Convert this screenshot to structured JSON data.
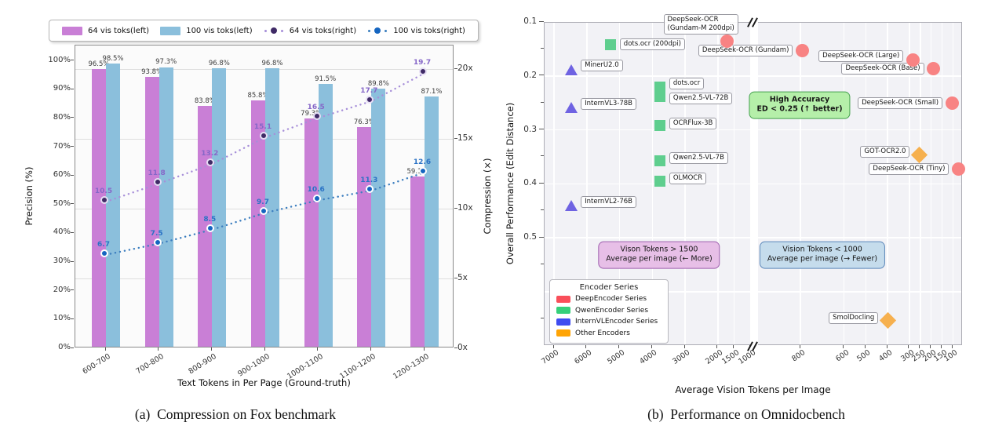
{
  "captions": {
    "a": "(a)  Compression on Fox benchmark",
    "b": "(b)  Performance on Omnidocbench"
  },
  "chart_data": [
    {
      "id": "fox-compression",
      "type": "bar",
      "title": "",
      "xlabel": "Text Tokens in Per Page (Ground-truth)",
      "ylabel_left": "Precision (%)",
      "ylabel_right": "Compression (×)",
      "categories": [
        "600-700",
        "700-800",
        "800-900",
        "900-1000",
        "1000-1100",
        "1100-1200",
        "1200-1300"
      ],
      "yticks_left": [
        "0%",
        "10%",
        "20%",
        "30%",
        "40%",
        "50%",
        "60%",
        "70%",
        "80%",
        "90%",
        "100%"
      ],
      "yticks_right": [
        "0x",
        "5x",
        "10x",
        "15x",
        "20x"
      ],
      "ylim_left": [
        0,
        100
      ],
      "ylim_right": [
        0,
        21.7
      ],
      "grid": "horizontal at right-axis ticks",
      "legend_position": "top",
      "series": [
        {
          "name": "64 vis toks(left)",
          "kind": "bar",
          "axis": "left",
          "color": "#c97fd6",
          "values": [
            96.5,
            93.8,
            83.8,
            85.8,
            79.3,
            76.3,
            59.1
          ],
          "labels": [
            "96.5%",
            "93.8%",
            "83.8%",
            "85.8%",
            "79.3%",
            "76.3%",
            "59.1%"
          ],
          "label_color": "#3d3d3d"
        },
        {
          "name": "100 vis toks(left)",
          "kind": "bar",
          "axis": "left",
          "color": "#8bbfdc",
          "values": [
            98.5,
            97.3,
            96.8,
            96.8,
            91.5,
            89.8,
            87.1
          ],
          "labels": [
            "98.5%",
            "97.3%",
            "96.8%",
            "96.8%",
            "91.5%",
            "89.8%",
            "87.1%"
          ],
          "label_color": "#3d3d3d"
        },
        {
          "name": "64 vis toks(right)",
          "kind": "line",
          "axis": "right",
          "line_color": "#a78fd9",
          "dot_color": "#3f2a66",
          "dot_ring": "#e6def4",
          "values": [
            10.5,
            11.8,
            13.2,
            15.1,
            16.5,
            17.7,
            19.7
          ],
          "labels": [
            "10.5",
            "11.8",
            "13.2",
            "15.1",
            "16.5",
            "17.7",
            "19.7"
          ],
          "label_color": "#8667c8"
        },
        {
          "name": "100 vis toks(right)",
          "kind": "line",
          "axis": "right",
          "line_color": "#3c7ebf",
          "dot_color": "#1565c0",
          "dot_ring": "#ffffff",
          "values": [
            6.7,
            7.5,
            8.5,
            9.7,
            10.6,
            11.3,
            12.6
          ],
          "labels": [
            "6.7",
            "7.5",
            "8.5",
            "9.7",
            "10.6",
            "11.3",
            "12.6"
          ],
          "label_color": "#2a72c5"
        }
      ]
    },
    {
      "id": "omnidocbench-performance",
      "type": "scatter",
      "title": "",
      "xlabel": "Average Vision Tokens per Image",
      "ylabel": "Overall Performance (Edit Distance)",
      "x_axis": {
        "broken": true,
        "left_segment": {
          "ticks": [
            7000,
            6000,
            5000,
            4000,
            3000,
            2000,
            1500,
            1000
          ],
          "range": [
            7290,
            1000
          ],
          "scale": "linear"
        },
        "right_segment": {
          "ticks": [
            800,
            600,
            500,
            400,
            300,
            250,
            200,
            150,
            100
          ],
          "range": [
            1000,
            55
          ],
          "scale": "linear"
        }
      },
      "y_axis": {
        "ticks": [
          "0.1",
          "0.2",
          "0.3",
          "0.4",
          "0.5"
        ],
        "range": [
          0.1,
          0.7
        ],
        "minor_ticks": [
          0.15,
          0.25,
          0.35,
          0.45,
          0.55,
          0.65
        ],
        "inverted_better": "up"
      },
      "series": [
        {
          "name": "DeepEncoder Series",
          "marker": "circle",
          "color": "#f88383",
          "points": [
            {
              "label": "DeepSeek-OCR\n(Gundam-M 200dpi)",
              "x": 1730,
              "y": 0.136,
              "label_side": "above"
            },
            {
              "label": "DeepSeek-OCR (Gundam)",
              "x": 790,
              "y": 0.153,
              "label_side": "left"
            },
            {
              "label": "DeepSeek-OCR (Large)",
              "x": 285,
              "y": 0.17,
              "label_side": "left",
              "label_dy": -5
            },
            {
              "label": "DeepSeek-OCR (Base)",
              "x": 190,
              "y": 0.187,
              "label_side": "left",
              "label_dy": 0
            },
            {
              "label": "DeepSeek-OCR (Small)",
              "x": 105,
              "y": 0.25,
              "label_side": "left"
            },
            {
              "label": "DeepSeek-OCR (Tiny)",
              "x": 75,
              "y": 0.372,
              "label_side": "left"
            }
          ]
        },
        {
          "name": "QwenEncoder Series",
          "marker": "square",
          "color": "#5fce8e",
          "points": [
            {
              "label": "dots.ocr (200dpi)",
              "x": 5280,
              "y": 0.142,
              "label_side": "right"
            },
            {
              "label": "dots.ocr",
              "x": 3770,
              "y": 0.221,
              "label_side": "right",
              "label_dy": -5
            },
            {
              "label": "Qwen2.5-VL-72B",
              "x": 3770,
              "y": 0.238,
              "label_side": "right",
              "label_dy": 3
            },
            {
              "label": "OCRFlux-3B",
              "x": 3770,
              "y": 0.292,
              "label_side": "right",
              "label_dy": -3
            },
            {
              "label": "Qwen2.5-VL-7B",
              "x": 3770,
              "y": 0.357,
              "label_side": "right",
              "label_dy": -3
            },
            {
              "label": "OLMOCR",
              "x": 3770,
              "y": 0.395,
              "label_side": "right",
              "label_dy": -3
            }
          ]
        },
        {
          "name": "InternVLEncoder Series",
          "marker": "triangle",
          "color": "#6f63e2",
          "points": [
            {
              "label": "MinerU2.0",
              "x": 6470,
              "y": 0.189,
              "label_side": "right",
              "label_dy": -6
            },
            {
              "label": "InternVL3-78B",
              "x": 6470,
              "y": 0.259,
              "label_side": "right",
              "label_dy": -5
            },
            {
              "label": "InternVL2-76B",
              "x": 6470,
              "y": 0.441,
              "label_side": "right",
              "label_dy": -5
            }
          ]
        },
        {
          "name": "Other Encoders",
          "marker": "diamond",
          "color": "#f6b04e",
          "points": [
            {
              "label": "GOT-OCR2.0",
              "x": 255,
              "y": 0.347,
              "label_side": "left",
              "label_dy": -4
            },
            {
              "label": "SmolDocling",
              "x": 400,
              "y": 0.653,
              "label_side": "left",
              "label_dy": -3
            }
          ]
        }
      ],
      "legend": {
        "title": "Encoder Series",
        "items": [
          {
            "label": "DeepEncoder Series",
            "color": "#f94f5a"
          },
          {
            "label": "QwenEncoder Series",
            "color": "#35d07a"
          },
          {
            "label": "InternVLEncoder Series",
            "color": "#3f4cf0"
          },
          {
            "label": "Other Encoders",
            "color": "#ffa405"
          }
        ]
      },
      "annotations": [
        {
          "id": "high-accuracy",
          "lines": "High Accuracy\nED < 0.25 (↑ better)",
          "bg": "#b5efa9",
          "border": "#44a04e",
          "cx": 325,
          "cy": 105,
          "bold": true
        },
        {
          "id": "left-zone",
          "lines": "Vison Tokens > 1500\nAverage per image (← More)",
          "bg": "#e7bfe7",
          "border": "#9e5fae",
          "cx": 146,
          "cy": 296,
          "bold": false
        },
        {
          "id": "right-zone",
          "lines": "Vision Tokens < 1000\nAverage per image (→ Fewer)",
          "bg": "#c5dcec",
          "border": "#5b87ba",
          "cx": 354,
          "cy": 296,
          "bold": false
        }
      ]
    }
  ]
}
